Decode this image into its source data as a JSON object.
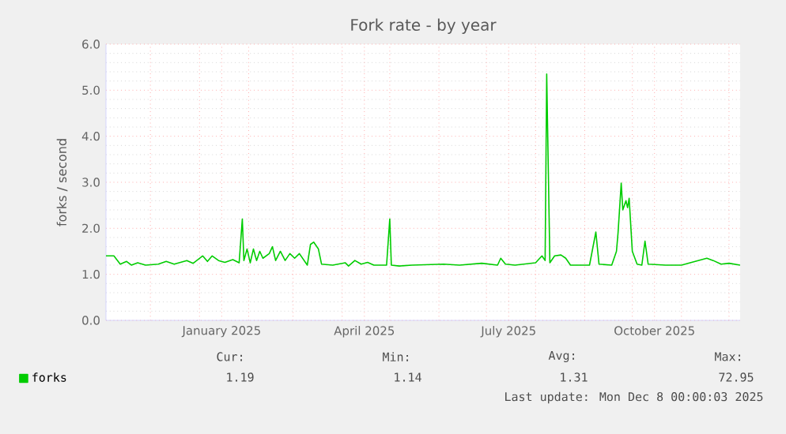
{
  "chart_data": {
    "type": "line",
    "title": "Fork rate - by year",
    "ylabel": "forks / second",
    "xlim": [
      "2024-11-03",
      "2025-12-08"
    ],
    "xticks": [
      {
        "value": "2024-12-01",
        "label": null
      },
      {
        "value": "2025-01-01",
        "label": null
      },
      {
        "value": "2025-01-15",
        "label": "January 2025"
      },
      {
        "value": "2025-02-01",
        "label": null
      },
      {
        "value": "2025-03-01",
        "label": null
      },
      {
        "value": "2025-04-01",
        "label": null
      },
      {
        "value": "2025-04-15",
        "label": "April 2025"
      },
      {
        "value": "2025-05-01",
        "label": null
      },
      {
        "value": "2025-06-01",
        "label": null
      },
      {
        "value": "2025-07-01",
        "label": null
      },
      {
        "value": "2025-07-15",
        "label": "July 2025"
      },
      {
        "value": "2025-08-01",
        "label": null
      },
      {
        "value": "2025-09-01",
        "label": null
      },
      {
        "value": "2025-10-01",
        "label": null
      },
      {
        "value": "2025-10-15",
        "label": "October 2025"
      },
      {
        "value": "2025-11-01",
        "label": null
      },
      {
        "value": "2025-12-01",
        "label": null
      }
    ],
    "ylim": [
      0,
      6
    ],
    "yticks": [
      {
        "value": 0,
        "label": "0.0"
      },
      {
        "value": 1,
        "label": "1.0"
      },
      {
        "value": 2,
        "label": "2.0"
      },
      {
        "value": 3,
        "label": "3.0"
      },
      {
        "value": 4,
        "label": "4.0"
      },
      {
        "value": 5,
        "label": "5.0"
      },
      {
        "value": 6,
        "label": "6.0"
      }
    ],
    "grid": true,
    "legend": "bottom left",
    "marker": "none",
    "line_style": "solid",
    "series": [
      {
        "name": "forks",
        "color": "#00cc00",
        "x": [
          "2024-11-03",
          "2024-11-08",
          "2024-11-12",
          "2024-11-16",
          "2024-11-19",
          "2024-11-23",
          "2024-11-28",
          "2024-12-06",
          "2024-12-11",
          "2024-12-16",
          "2024-12-24",
          "2024-12-28",
          "2025-01-03",
          "2025-01-06",
          "2025-01-09",
          "2025-01-13",
          "2025-01-17",
          "2025-01-22",
          "2025-01-26",
          "2025-01-28",
          "2025-01-29",
          "2025-01-31",
          "2025-02-02",
          "2025-02-04",
          "2025-02-06",
          "2025-02-08",
          "2025-02-10",
          "2025-02-14",
          "2025-02-16",
          "2025-02-18",
          "2025-02-21",
          "2025-02-24",
          "2025-02-27",
          "2025-03-02",
          "2025-03-05",
          "2025-03-10",
          "2025-03-12",
          "2025-03-14",
          "2025-03-17",
          "2025-03-19",
          "2025-03-26",
          "2025-04-03",
          "2025-04-05",
          "2025-04-09",
          "2025-04-13",
          "2025-04-17",
          "2025-04-21",
          "2025-04-29",
          "2025-05-01",
          "2025-05-02",
          "2025-05-07",
          "2025-05-15",
          "2025-06-04",
          "2025-06-14",
          "2025-06-28",
          "2025-07-08",
          "2025-07-10",
          "2025-07-13",
          "2025-07-19",
          "2025-08-01",
          "2025-08-05",
          "2025-08-07",
          "2025-08-08",
          "2025-08-10",
          "2025-08-13",
          "2025-08-17",
          "2025-08-20",
          "2025-08-23",
          "2025-09-04",
          "2025-09-08",
          "2025-09-10",
          "2025-09-18",
          "2025-09-21",
          "2025-09-22",
          "2025-09-24",
          "2025-09-25",
          "2025-09-27",
          "2025-09-28",
          "2025-09-29",
          "2025-10-01",
          "2025-10-04",
          "2025-10-07",
          "2025-10-09",
          "2025-10-11",
          "2025-10-22",
          "2025-11-01",
          "2025-11-17",
          "2025-11-21",
          "2025-11-26",
          "2025-12-01",
          "2025-12-08"
        ],
        "values": [
          1.4,
          1.4,
          1.22,
          1.28,
          1.2,
          1.25,
          1.2,
          1.22,
          1.28,
          1.22,
          1.3,
          1.24,
          1.4,
          1.28,
          1.4,
          1.3,
          1.26,
          1.32,
          1.25,
          2.2,
          1.3,
          1.55,
          1.25,
          1.55,
          1.3,
          1.5,
          1.35,
          1.45,
          1.6,
          1.3,
          1.5,
          1.3,
          1.45,
          1.35,
          1.45,
          1.2,
          1.65,
          1.7,
          1.55,
          1.22,
          1.2,
          1.25,
          1.18,
          1.3,
          1.22,
          1.26,
          1.2,
          1.2,
          2.2,
          1.2,
          1.18,
          1.2,
          1.22,
          1.2,
          1.24,
          1.2,
          1.35,
          1.22,
          1.2,
          1.25,
          1.4,
          1.3,
          5.35,
          1.25,
          1.4,
          1.42,
          1.35,
          1.2,
          1.2,
          1.92,
          1.22,
          1.2,
          1.5,
          1.9,
          2.98,
          2.4,
          2.6,
          2.45,
          2.65,
          1.5,
          1.22,
          1.2,
          1.72,
          1.22,
          1.2,
          1.2,
          1.35,
          1.3,
          1.22,
          1.24,
          1.2
        ]
      }
    ],
    "annotations": [
      "Cur:",
      "1.19",
      "Min:",
      "1.14",
      "Avg:",
      "1.31",
      "Max:",
      "72.95",
      "Last update: Mon Dec  8 00:00:03 2025"
    ]
  }
}
